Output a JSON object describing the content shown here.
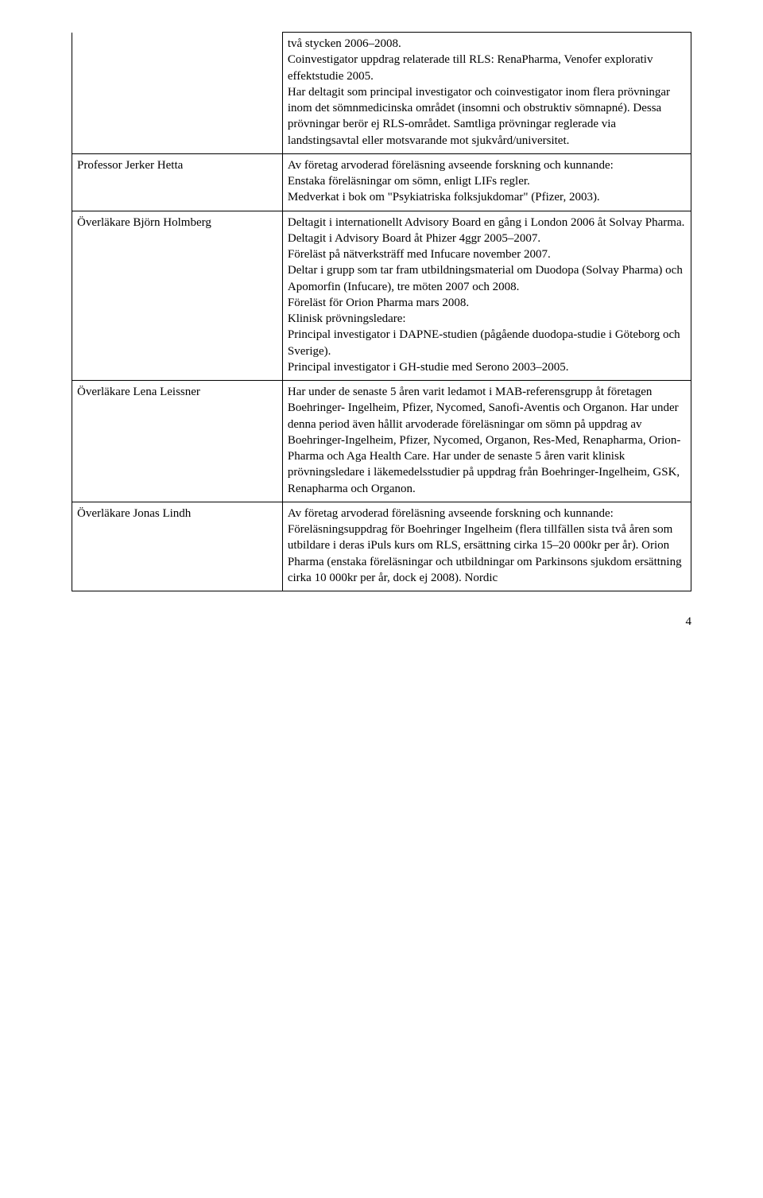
{
  "page_number": "4",
  "rows": [
    {
      "name": "",
      "body": "två stycken 2006–2008.\nCoinvestigator uppdrag relaterade till RLS: RenaPharma, Venofer explorativ effektstudie 2005.\nHar deltagit som principal investigator och coinvestigator inom flera prövningar inom det sömnmedicinska området (insomni och obstruktiv sömnapné). Dessa prövningar berör ej RLS-området. Samtliga prövningar reglerade via landstingsavtal eller motsvarande mot sjukvård/universitet."
    },
    {
      "name": "Professor Jerker Hetta",
      "body": "Av företag arvoderad föreläsning avseende forskning och kunnande:\nEnstaka föreläsningar om sömn, enligt LIFs regler.\nMedverkat i bok om \"Psykiatriska folksjukdomar\" (Pfizer, 2003)."
    },
    {
      "name": "Överläkare Björn Holmberg",
      "body": "Deltagit i internationellt Advisory Board en gång i London 2006 åt Solvay Pharma.\nDeltagit i Advisory Board åt Phizer 4ggr 2005–2007.\nFöreläst på nätverksträff med Infucare november 2007.\nDeltar i grupp som tar fram utbildningsmaterial om Duodopa (Solvay Pharma) och Apomorfin (Infucare), tre möten 2007 och 2008.\nFöreläst för Orion Pharma mars 2008.\nKlinisk prövningsledare:\nPrincipal investigator i DAPNE-studien (pågående duodopa-studie i Göteborg och Sverige).\nPrincipal investigator i GH-studie med Serono 2003–2005."
    },
    {
      "name": "Överläkare Lena Leissner",
      "body": "Har under de senaste 5 åren varit ledamot i MAB-referensgrupp åt företagen Boehringer- Ingelheim, Pfizer, Nycomed, Sanofi-Aventis och Organon. Har under denna period även hållit arvoderade föreläsningar om sömn på uppdrag av Boehringer-Ingelheim, Pfizer, Nycomed, Organon, Res-Med, Renapharma, Orion-Pharma och Aga Health Care. Har under de senaste 5 åren varit klinisk prövningsledare i läkemedelsstudier på uppdrag från Boehringer-Ingelheim, GSK, Renapharma och Organon."
    },
    {
      "name": "Överläkare Jonas Lindh",
      "body": "Av företag arvoderad föreläsning avseende forskning och kunnande:\nFöreläsningsuppdrag för Boehringer Ingelheim (flera tillfällen sista två åren som utbildare i deras iPuls kurs om RLS, ersättning cirka 15–20 000kr per år). Orion Pharma (enstaka föreläsningar och utbildningar om Parkinsons sjukdom ersättning cirka 10 000kr per år, dock ej 2008). Nordic"
    }
  ]
}
